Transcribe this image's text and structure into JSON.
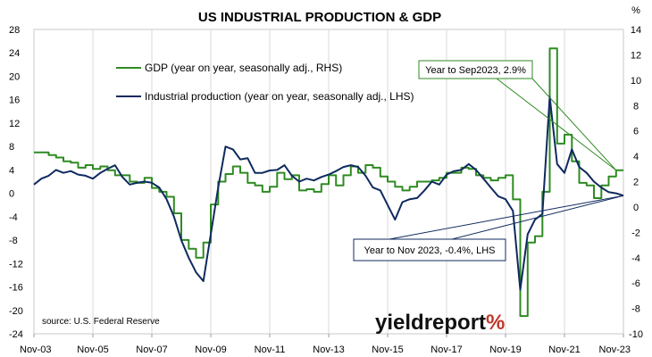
{
  "chart_data": {
    "type": "line",
    "title": "US INDUSTRIAL PRODUCTION & GDP",
    "right_unit": "%",
    "source": "source: U.S. Federal Reserve",
    "brand": {
      "text": "yieldreport",
      "symbol": "%",
      "text_color": "#111111",
      "symbol_color": "#c0392b"
    },
    "x_tick_labels": [
      "Nov-03",
      "Nov-05",
      "Nov-07",
      "Nov-09",
      "Nov-11",
      "Nov-13",
      "Nov-15",
      "Nov-17",
      "Nov-19",
      "Nov-21",
      "Nov-23"
    ],
    "x_range": [
      "2003-11",
      "2023-11"
    ],
    "left_axis": {
      "ticks": [
        28,
        24,
        20,
        16,
        12,
        8,
        4,
        0,
        -4,
        -8,
        -12,
        -16,
        -20,
        -24
      ],
      "ylim": [
        -24,
        28
      ]
    },
    "right_axis": {
      "ticks": [
        14,
        12,
        10,
        8,
        6,
        4,
        2,
        0,
        -2,
        -4,
        -6,
        -8,
        -10
      ],
      "ylim": [
        -10,
        14
      ]
    },
    "grid": "vertical",
    "legend_position": "top-left",
    "series": [
      {
        "name": "GDP (year on year, seasonally adj., RHS)",
        "axis": "right",
        "color": "#2e8b22",
        "step": true,
        "points": [
          [
            "2003-11",
            4.3
          ],
          [
            "2004-02",
            4.3
          ],
          [
            "2004-05",
            4.1
          ],
          [
            "2004-08",
            3.9
          ],
          [
            "2004-11",
            3.6
          ],
          [
            "2005-02",
            3.5
          ],
          [
            "2005-05",
            3.1
          ],
          [
            "2005-08",
            3.3
          ],
          [
            "2005-11",
            3.0
          ],
          [
            "2006-02",
            3.2
          ],
          [
            "2006-05",
            2.9
          ],
          [
            "2006-08",
            2.5
          ],
          [
            "2006-11",
            2.5
          ],
          [
            "2007-02",
            2.0
          ],
          [
            "2007-05",
            1.9
          ],
          [
            "2007-08",
            2.3
          ],
          [
            "2007-11",
            1.5
          ],
          [
            "2008-02",
            1.2
          ],
          [
            "2008-05",
            0.8
          ],
          [
            "2008-08",
            -0.5
          ],
          [
            "2008-11",
            -2.6
          ],
          [
            "2009-02",
            -3.3
          ],
          [
            "2009-05",
            -4.0
          ],
          [
            "2009-08",
            -2.8
          ],
          [
            "2009-11",
            0.2
          ],
          [
            "2010-02",
            2.0
          ],
          [
            "2010-05",
            2.6
          ],
          [
            "2010-08",
            3.2
          ],
          [
            "2010-11",
            2.7
          ],
          [
            "2011-02",
            1.9
          ],
          [
            "2011-05",
            1.7
          ],
          [
            "2011-08",
            1.2
          ],
          [
            "2011-11",
            1.6
          ],
          [
            "2012-02",
            2.7
          ],
          [
            "2012-05",
            2.2
          ],
          [
            "2012-08",
            2.5
          ],
          [
            "2012-11",
            1.3
          ],
          [
            "2013-02",
            1.4
          ],
          [
            "2013-05",
            1.2
          ],
          [
            "2013-08",
            1.8
          ],
          [
            "2013-11",
            2.5
          ],
          [
            "2014-02",
            1.7
          ],
          [
            "2014-05",
            2.5
          ],
          [
            "2014-08",
            3.2
          ],
          [
            "2014-11",
            2.7
          ],
          [
            "2015-02",
            3.3
          ],
          [
            "2015-05",
            3.1
          ],
          [
            "2015-08",
            2.4
          ],
          [
            "2015-11",
            2.0
          ],
          [
            "2016-02",
            1.6
          ],
          [
            "2016-05",
            1.3
          ],
          [
            "2016-08",
            1.6
          ],
          [
            "2016-11",
            2.0
          ],
          [
            "2017-02",
            2.0
          ],
          [
            "2017-05",
            2.1
          ],
          [
            "2017-08",
            2.3
          ],
          [
            "2017-11",
            2.7
          ],
          [
            "2018-02",
            2.7
          ],
          [
            "2018-05",
            3.1
          ],
          [
            "2018-08",
            3.0
          ],
          [
            "2018-11",
            2.5
          ],
          [
            "2019-02",
            2.3
          ],
          [
            "2019-05",
            2.1
          ],
          [
            "2019-08",
            2.3
          ],
          [
            "2019-11",
            2.5
          ],
          [
            "2020-02",
            0.6
          ],
          [
            "2020-05",
            -8.6
          ],
          [
            "2020-08",
            -2.8
          ],
          [
            "2020-11",
            -2.3
          ],
          [
            "2021-02",
            1.2
          ],
          [
            "2021-05",
            12.5
          ],
          [
            "2021-08",
            5.0
          ],
          [
            "2021-11",
            5.7
          ],
          [
            "2022-02",
            3.6
          ],
          [
            "2022-05",
            1.9
          ],
          [
            "2022-08",
            1.7
          ],
          [
            "2022-11",
            0.7
          ],
          [
            "2023-02",
            1.7
          ],
          [
            "2023-05",
            2.4
          ],
          [
            "2023-08",
            2.9
          ],
          [
            "2023-11",
            2.9
          ]
        ]
      },
      {
        "name": "Industrial production (year on year, seasonally adj., LHS)",
        "axis": "left",
        "color": "#0f2a5f",
        "step": false,
        "points": [
          [
            "2003-11",
            1.5
          ],
          [
            "2004-02",
            2.5
          ],
          [
            "2004-05",
            3.0
          ],
          [
            "2004-08",
            4.0
          ],
          [
            "2004-11",
            3.5
          ],
          [
            "2005-02",
            3.8
          ],
          [
            "2005-05",
            3.2
          ],
          [
            "2005-08",
            3.0
          ],
          [
            "2005-11",
            2.5
          ],
          [
            "2006-02",
            3.5
          ],
          [
            "2006-05",
            4.2
          ],
          [
            "2006-08",
            4.8
          ],
          [
            "2006-11",
            2.8
          ],
          [
            "2007-02",
            1.5
          ],
          [
            "2007-05",
            1.8
          ],
          [
            "2007-08",
            2.0
          ],
          [
            "2007-11",
            1.8
          ],
          [
            "2008-02",
            1.0
          ],
          [
            "2008-05",
            -1.0
          ],
          [
            "2008-08",
            -4.0
          ],
          [
            "2008-11",
            -8.0
          ],
          [
            "2009-02",
            -11.0
          ],
          [
            "2009-05",
            -13.5
          ],
          [
            "2009-08",
            -15.0
          ],
          [
            "2009-11",
            -7.0
          ],
          [
            "2010-02",
            1.0
          ],
          [
            "2010-05",
            8.0
          ],
          [
            "2010-08",
            7.5
          ],
          [
            "2010-11",
            5.8
          ],
          [
            "2011-02",
            6.0
          ],
          [
            "2011-05",
            3.5
          ],
          [
            "2011-08",
            3.5
          ],
          [
            "2011-11",
            3.9
          ],
          [
            "2012-02",
            4.0
          ],
          [
            "2012-05",
            4.8
          ],
          [
            "2012-08",
            3.0
          ],
          [
            "2012-11",
            2.0
          ],
          [
            "2013-02",
            2.5
          ],
          [
            "2013-05",
            2.2
          ],
          [
            "2013-08",
            2.8
          ],
          [
            "2013-11",
            3.2
          ],
          [
            "2014-02",
            3.8
          ],
          [
            "2014-05",
            4.5
          ],
          [
            "2014-08",
            4.8
          ],
          [
            "2014-11",
            4.5
          ],
          [
            "2015-02",
            3.0
          ],
          [
            "2015-05",
            1.0
          ],
          [
            "2015-08",
            0.5
          ],
          [
            "2015-11",
            -2.0
          ],
          [
            "2016-02",
            -4.5
          ],
          [
            "2016-05",
            -1.5
          ],
          [
            "2016-08",
            -1.0
          ],
          [
            "2016-11",
            -0.8
          ],
          [
            "2017-02",
            0.5
          ],
          [
            "2017-05",
            2.0
          ],
          [
            "2017-08",
            1.5
          ],
          [
            "2017-11",
            3.2
          ],
          [
            "2018-02",
            3.8
          ],
          [
            "2018-05",
            4.0
          ],
          [
            "2018-08",
            5.0
          ],
          [
            "2018-11",
            4.0
          ],
          [
            "2019-02",
            2.5
          ],
          [
            "2019-05",
            1.0
          ],
          [
            "2019-08",
            -0.5
          ],
          [
            "2019-11",
            -1.0
          ],
          [
            "2020-02",
            -3.0
          ],
          [
            "2020-05",
            -16.5
          ],
          [
            "2020-08",
            -7.0
          ],
          [
            "2020-11",
            -4.5
          ],
          [
            "2021-02",
            -3.5
          ],
          [
            "2021-05",
            16.5
          ],
          [
            "2021-08",
            5.0
          ],
          [
            "2021-11",
            3.5
          ],
          [
            "2022-02",
            7.5
          ],
          [
            "2022-05",
            4.5
          ],
          [
            "2022-08",
            3.5
          ],
          [
            "2022-11",
            2.0
          ],
          [
            "2023-02",
            1.0
          ],
          [
            "2023-05",
            0.2
          ],
          [
            "2023-08",
            0.0
          ],
          [
            "2023-11",
            -0.4
          ]
        ]
      }
    ],
    "annotations": [
      {
        "label": "Year to Sep2023, 2.9%",
        "color": "#2e8b22",
        "target_series": 0,
        "target_x": "2023-08",
        "target_y": 2.9
      },
      {
        "label": "Year to Nov 2023, -0.4%, LHS",
        "color": "#0f2a5f",
        "target_series": 1,
        "target_x": "2023-11",
        "target_y": -0.4
      }
    ]
  }
}
